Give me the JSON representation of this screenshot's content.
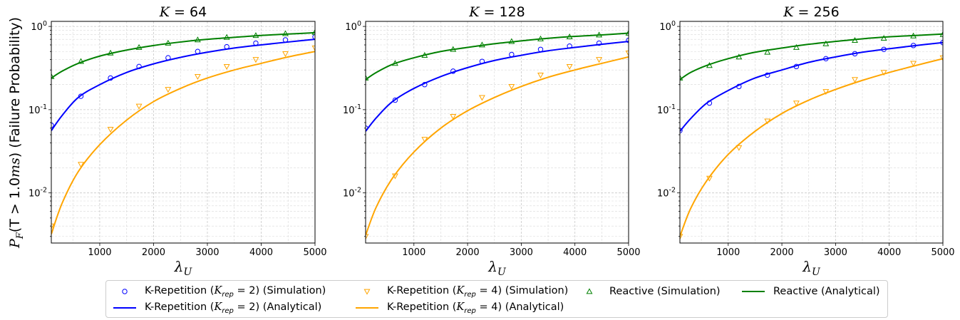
{
  "chart_data": [
    {
      "type": "line",
      "title": "K = 64",
      "title_var": "K",
      "title_value": "64",
      "ylabel": "P_F(T > 1.0ms) (Failure Probability)",
      "xlabel": "λ_U",
      "xlim": [
        100,
        5000
      ],
      "ylim": [
        0.0025,
        1.15
      ],
      "yscale": "log",
      "grid": true,
      "xticks": [
        "1000",
        "2000",
        "3000",
        "4000",
        "5000"
      ],
      "yticks": [
        "10^-2",
        "10^-1",
        "10^0"
      ],
      "series": [
        {
          "name": "K-Repetition (K_rep = 2) (Simulation)",
          "kind": "scatter",
          "marker": "circle",
          "color": "#0000ff",
          "x": [
            100,
            650,
            1200,
            1730,
            2270,
            2820,
            3360,
            3900,
            4450,
            5000
          ],
          "y": [
            0.065,
            0.145,
            0.24,
            0.33,
            0.42,
            0.5,
            0.57,
            0.63,
            0.69,
            0.75
          ]
        },
        {
          "name": "K-Repetition (K_rep = 4) (Simulation)",
          "kind": "scatter",
          "marker": "triangle-down",
          "color": "#ffa500",
          "x": [
            100,
            650,
            1200,
            1730,
            2270,
            2820,
            3360,
            3900,
            4450,
            5000
          ],
          "y": [
            0.004,
            0.022,
            0.058,
            0.11,
            0.175,
            0.25,
            0.33,
            0.4,
            0.47,
            0.55
          ]
        },
        {
          "name": "Reactive (Simulation)",
          "kind": "scatter",
          "marker": "triangle-up",
          "color": "#008000",
          "x": [
            100,
            650,
            1200,
            1730,
            2270,
            2820,
            3360,
            3900,
            4450,
            5000
          ],
          "y": [
            0.25,
            0.38,
            0.48,
            0.56,
            0.63,
            0.69,
            0.74,
            0.78,
            0.82,
            0.85
          ]
        },
        {
          "name": "K-Repetition (K_rep = 2) (Analytical)",
          "kind": "line",
          "color": "#0000ff",
          "x": [
            100,
            300,
            600,
            1000,
            1500,
            2000,
            2500,
            3000,
            3500,
            4000,
            4500,
            5000
          ],
          "y": [
            0.056,
            0.085,
            0.14,
            0.2,
            0.28,
            0.355,
            0.425,
            0.49,
            0.55,
            0.6,
            0.65,
            0.7
          ]
        },
        {
          "name": "K-Repetition (K_rep = 4) (Analytical)",
          "kind": "line",
          "color": "#ffa500",
          "x": [
            100,
            300,
            600,
            1000,
            1500,
            2000,
            2500,
            3000,
            3500,
            4000,
            4500,
            5000
          ],
          "y": [
            0.0032,
            0.0075,
            0.018,
            0.038,
            0.075,
            0.125,
            0.18,
            0.24,
            0.3,
            0.36,
            0.43,
            0.5
          ]
        },
        {
          "name": "Reactive (Analytical)",
          "kind": "line",
          "color": "#008000",
          "x": [
            100,
            300,
            600,
            1000,
            1500,
            2000,
            2500,
            3000,
            3500,
            4000,
            4500,
            5000
          ],
          "y": [
            0.24,
            0.29,
            0.36,
            0.44,
            0.52,
            0.59,
            0.65,
            0.7,
            0.74,
            0.78,
            0.81,
            0.84
          ]
        }
      ]
    },
    {
      "type": "line",
      "title": "K = 128",
      "title_var": "K",
      "title_value": "128",
      "xlabel": "λ_U",
      "xlim": [
        100,
        5000
      ],
      "ylim": [
        0.0025,
        1.15
      ],
      "yscale": "log",
      "grid": true,
      "xticks": [
        "1000",
        "2000",
        "3000",
        "4000",
        "5000"
      ],
      "yticks": [
        "10^-2",
        "10^-1",
        "10^0"
      ],
      "series": [
        {
          "name": "K-Repetition (K_rep = 2) (Simulation)",
          "kind": "scatter",
          "marker": "circle",
          "color": "#0000ff",
          "x": [
            100,
            650,
            1200,
            1730,
            2270,
            2820,
            3360,
            3900,
            4450,
            5000
          ],
          "y": [
            0.06,
            0.13,
            0.2,
            0.29,
            0.38,
            0.46,
            0.53,
            0.58,
            0.63,
            0.68
          ]
        },
        {
          "name": "K-Repetition (K_rep = 4) (Simulation)",
          "kind": "scatter",
          "marker": "triangle-down",
          "color": "#ffa500",
          "x": [
            100,
            650,
            1200,
            1730,
            2270,
            2820,
            3360,
            3900,
            4450,
            5000
          ],
          "y": [
            0.003,
            0.016,
            0.044,
            0.083,
            0.14,
            0.19,
            0.26,
            0.33,
            0.4,
            0.48
          ]
        },
        {
          "name": "Reactive (Simulation)",
          "kind": "scatter",
          "marker": "triangle-up",
          "color": "#008000",
          "x": [
            100,
            650,
            1200,
            1730,
            2270,
            2820,
            3360,
            3900,
            4450,
            5000
          ],
          "y": [
            0.24,
            0.36,
            0.45,
            0.53,
            0.6,
            0.66,
            0.71,
            0.75,
            0.79,
            0.83
          ]
        },
        {
          "name": "K-Repetition (K_rep = 2) (Analytical)",
          "kind": "line",
          "color": "#0000ff",
          "x": [
            100,
            300,
            600,
            1000,
            1500,
            2000,
            2500,
            3000,
            3500,
            4000,
            4500,
            5000
          ],
          "y": [
            0.055,
            0.08,
            0.125,
            0.18,
            0.25,
            0.32,
            0.39,
            0.45,
            0.51,
            0.56,
            0.61,
            0.66
          ]
        },
        {
          "name": "K-Repetition (K_rep = 4) (Analytical)",
          "kind": "line",
          "color": "#ffa500",
          "x": [
            100,
            300,
            600,
            1000,
            1500,
            2000,
            2500,
            3000,
            3500,
            4000,
            4500,
            5000
          ],
          "y": [
            0.0031,
            0.0068,
            0.015,
            0.031,
            0.06,
            0.097,
            0.14,
            0.19,
            0.245,
            0.3,
            0.36,
            0.43
          ]
        },
        {
          "name": "Reactive (Analytical)",
          "kind": "line",
          "color": "#008000",
          "x": [
            100,
            300,
            600,
            1000,
            1500,
            2000,
            2500,
            3000,
            3500,
            4000,
            4500,
            5000
          ],
          "y": [
            0.23,
            0.28,
            0.35,
            0.42,
            0.5,
            0.56,
            0.62,
            0.67,
            0.72,
            0.76,
            0.79,
            0.83
          ]
        }
      ]
    },
    {
      "type": "line",
      "title": "K = 256",
      "title_var": "K",
      "title_value": "256",
      "xlabel": "λ_U",
      "xlim": [
        100,
        5000
      ],
      "ylim": [
        0.0025,
        1.15
      ],
      "yscale": "log",
      "grid": true,
      "xticks": [
        "1000",
        "2000",
        "3000",
        "4000",
        "5000"
      ],
      "yticks": [
        "10^-2",
        "10^-1",
        "10^0"
      ],
      "series": [
        {
          "name": "K-Repetition (K_rep = 2) (Simulation)",
          "kind": "scatter",
          "marker": "circle",
          "color": "#0000ff",
          "x": [
            100,
            650,
            1200,
            1730,
            2270,
            2820,
            3360,
            3900,
            4450,
            5000
          ],
          "y": [
            0.056,
            0.12,
            0.19,
            0.26,
            0.33,
            0.41,
            0.47,
            0.53,
            0.59,
            0.64
          ]
        },
        {
          "name": "K-Repetition (K_rep = 4) (Simulation)",
          "kind": "scatter",
          "marker": "triangle-down",
          "color": "#ffa500",
          "x": [
            100,
            650,
            1200,
            1730,
            2270,
            2820,
            3360,
            3900,
            4450,
            5000
          ],
          "y": [
            0.003,
            0.015,
            0.035,
            0.073,
            0.12,
            0.165,
            0.23,
            0.28,
            0.36,
            0.42
          ]
        },
        {
          "name": "Reactive (Simulation)",
          "kind": "scatter",
          "marker": "triangle-up",
          "color": "#008000",
          "x": [
            100,
            650,
            1200,
            1730,
            2270,
            2820,
            3360,
            3900,
            4450,
            5000
          ],
          "y": [
            0.24,
            0.34,
            0.43,
            0.49,
            0.56,
            0.62,
            0.68,
            0.72,
            0.77,
            0.8
          ]
        },
        {
          "name": "K-Repetition (K_rep = 2) (Analytical)",
          "kind": "line",
          "color": "#0000ff",
          "x": [
            100,
            300,
            600,
            1000,
            1500,
            2000,
            2500,
            3000,
            3500,
            4000,
            4500,
            5000
          ],
          "y": [
            0.055,
            0.078,
            0.12,
            0.17,
            0.24,
            0.3,
            0.37,
            0.43,
            0.49,
            0.54,
            0.59,
            0.64
          ]
        },
        {
          "name": "K-Repetition (K_rep = 4) (Analytical)",
          "kind": "line",
          "color": "#ffa500",
          "x": [
            100,
            300,
            600,
            1000,
            1500,
            2000,
            2500,
            3000,
            3500,
            4000,
            4500,
            5000
          ],
          "y": [
            0.003,
            0.0065,
            0.014,
            0.029,
            0.055,
            0.09,
            0.13,
            0.175,
            0.225,
            0.28,
            0.34,
            0.41
          ]
        },
        {
          "name": "Reactive (Analytical)",
          "kind": "line",
          "color": "#008000",
          "x": [
            100,
            300,
            600,
            1000,
            1500,
            2000,
            2500,
            3000,
            3500,
            4000,
            4500,
            5000
          ],
          "y": [
            0.23,
            0.28,
            0.34,
            0.41,
            0.49,
            0.55,
            0.61,
            0.66,
            0.71,
            0.75,
            0.78,
            0.81
          ]
        }
      ]
    }
  ],
  "legend": {
    "placement": "bottom-center",
    "entries": [
      {
        "label": "K-Repetition (K_rep = 2) (Simulation)",
        "label_pre": "K-Repetition (",
        "label_var": "K",
        "label_sub": "rep",
        "label_post": " = 2) (Simulation)",
        "marker": "circle",
        "color": "#0000ff"
      },
      {
        "label": "K-Repetition (K_rep = 4) (Simulation)",
        "label_pre": "K-Repetition (",
        "label_var": "K",
        "label_sub": "rep",
        "label_post": " = 4) (Simulation)",
        "marker": "triangle-down",
        "color": "#ffa500"
      },
      {
        "label": "Reactive (Simulation)",
        "marker": "triangle-up",
        "color": "#008000"
      },
      {
        "label": "Reactive (Analytical)",
        "marker": "line",
        "color": "#008000"
      },
      {
        "label": "K-Repetition (K_rep = 2) (Analytical)",
        "label_pre": "K-Repetition (",
        "label_var": "K",
        "label_sub": "rep",
        "label_post": " = 2) (Analytical)",
        "marker": "line",
        "color": "#0000ff"
      },
      {
        "label": "K-Repetition (K_rep = 4) (Analytical)",
        "label_pre": "K-Repetition (",
        "label_var": "K",
        "label_sub": "rep",
        "label_post": " = 4) (Analytical)",
        "marker": "line",
        "color": "#ffa500"
      }
    ]
  },
  "text": {
    "ylabel_pre": "P",
    "ylabel_sub": "F",
    "ylabel_mid": "(T > 1.0",
    "ylabel_unit": "ms",
    "ylabel_post": ") (Failure Probability)",
    "xlabel_main": "λ",
    "xlabel_sub": "U",
    "ytick_base": "10",
    "ytick_exps": [
      "-2",
      "-1",
      "0"
    ]
  }
}
